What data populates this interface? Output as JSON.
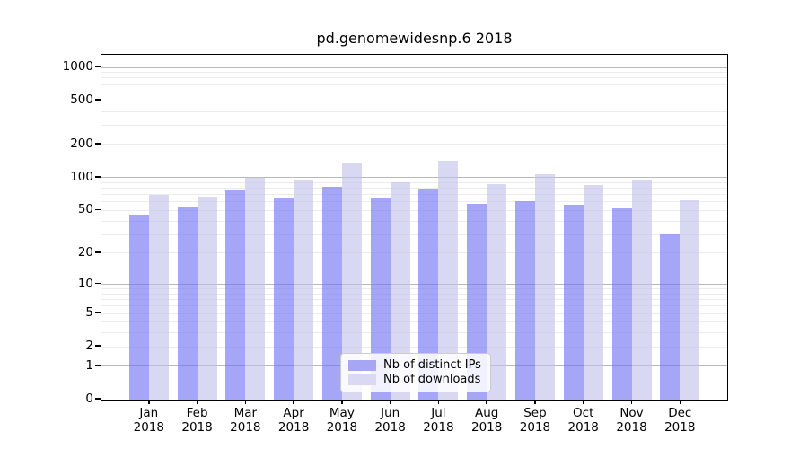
{
  "chart_data": {
    "type": "bar",
    "title": "pd.genomewidesnp.6 2018",
    "categories": [
      "Jan",
      "Feb",
      "Mar",
      "Apr",
      "May",
      "Jun",
      "Jul",
      "Aug",
      "Sep",
      "Oct",
      "Nov",
      "Dec"
    ],
    "year": "2018",
    "series": [
      {
        "name": "Nb of distinct IPs",
        "values": [
          46,
          53,
          77,
          65,
          82,
          65,
          80,
          58,
          61,
          57,
          52,
          30
        ],
        "color": "rgba(111,111,242,0.62)",
        "legend_color": "#a6a6f4"
      },
      {
        "name": "Nb of downloads",
        "values": [
          69,
          67,
          100,
          95,
          138,
          91,
          143,
          88,
          107,
          86,
          94,
          62
        ],
        "color": "rgba(192,192,235,0.62)",
        "legend_color": "#d9d9f3"
      }
    ],
    "yscale": "log1p",
    "axis_max": 1275,
    "ylim": [
      0,
      1000
    ],
    "yticks": {
      "labels": [
        "0",
        "1",
        "2",
        "5",
        "10",
        "20",
        "50",
        "100",
        "200",
        "500",
        "1000"
      ],
      "values": [
        0,
        1,
        2,
        5,
        10,
        20,
        50,
        100,
        200,
        500,
        1000
      ]
    },
    "grid": {
      "major_values": [
        1,
        10,
        100,
        1000
      ],
      "minor_values": [
        2,
        3,
        4,
        5,
        6,
        7,
        8,
        9,
        20,
        30,
        40,
        50,
        60,
        70,
        80,
        90,
        200,
        300,
        400,
        500,
        600,
        700,
        800,
        900
      ],
      "major_color": "#b9b9b9",
      "minor_color": "#ececec"
    },
    "legend_position": "lower center",
    "background": "#ffffff"
  }
}
